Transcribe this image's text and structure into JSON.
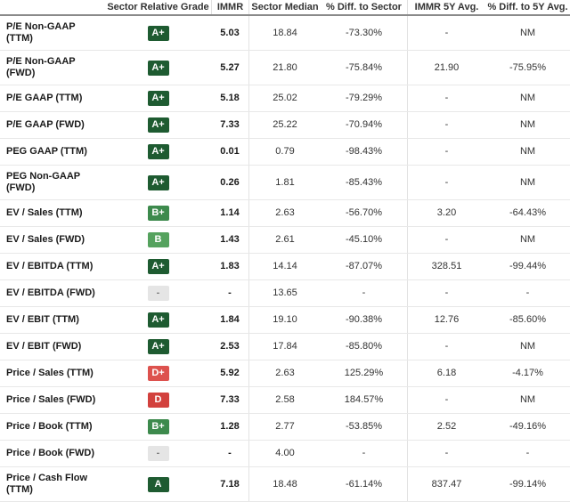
{
  "table": {
    "columns": [
      "",
      "Sector Relative Grade",
      "IMMR",
      "Sector Median",
      "% Diff. to Sector",
      "IMMR 5Y Avg.",
      "% Diff. to 5Y Avg."
    ],
    "rows": [
      {
        "label": "P/E Non-GAAP (TTM)",
        "grade": "A+",
        "immr": "5.03",
        "sector_median": "18.84",
        "diff_to_sector": "-73.30%",
        "immr_5y_avg": "-",
        "diff_to_5y_avg": "NM"
      },
      {
        "label": "P/E Non-GAAP (FWD)",
        "grade": "A+",
        "immr": "5.27",
        "sector_median": "21.80",
        "diff_to_sector": "-75.84%",
        "immr_5y_avg": "21.90",
        "diff_to_5y_avg": "-75.95%"
      },
      {
        "label": "P/E GAAP (TTM)",
        "grade": "A+",
        "immr": "5.18",
        "sector_median": "25.02",
        "diff_to_sector": "-79.29%",
        "immr_5y_avg": "-",
        "diff_to_5y_avg": "NM"
      },
      {
        "label": "P/E GAAP (FWD)",
        "grade": "A+",
        "immr": "7.33",
        "sector_median": "25.22",
        "diff_to_sector": "-70.94%",
        "immr_5y_avg": "-",
        "diff_to_5y_avg": "NM"
      },
      {
        "label": "PEG GAAP (TTM)",
        "grade": "A+",
        "immr": "0.01",
        "sector_median": "0.79",
        "diff_to_sector": "-98.43%",
        "immr_5y_avg": "-",
        "diff_to_5y_avg": "NM"
      },
      {
        "label": "PEG Non-GAAP (FWD)",
        "grade": "A+",
        "immr": "0.26",
        "sector_median": "1.81",
        "diff_to_sector": "-85.43%",
        "immr_5y_avg": "-",
        "diff_to_5y_avg": "NM"
      },
      {
        "label": "EV / Sales (TTM)",
        "grade": "B+",
        "immr": "1.14",
        "sector_median": "2.63",
        "diff_to_sector": "-56.70%",
        "immr_5y_avg": "3.20",
        "diff_to_5y_avg": "-64.43%"
      },
      {
        "label": "EV / Sales (FWD)",
        "grade": "B",
        "immr": "1.43",
        "sector_median": "2.61",
        "diff_to_sector": "-45.10%",
        "immr_5y_avg": "-",
        "diff_to_5y_avg": "NM"
      },
      {
        "label": "EV / EBITDA (TTM)",
        "grade": "A+",
        "immr": "1.83",
        "sector_median": "14.14",
        "diff_to_sector": "-87.07%",
        "immr_5y_avg": "328.51",
        "diff_to_5y_avg": "-99.44%"
      },
      {
        "label": "EV / EBITDA (FWD)",
        "grade": "-",
        "immr": "-",
        "sector_median": "13.65",
        "diff_to_sector": "-",
        "immr_5y_avg": "-",
        "diff_to_5y_avg": "-"
      },
      {
        "label": "EV / EBIT (TTM)",
        "grade": "A+",
        "immr": "1.84",
        "sector_median": "19.10",
        "diff_to_sector": "-90.38%",
        "immr_5y_avg": "12.76",
        "diff_to_5y_avg": "-85.60%"
      },
      {
        "label": "EV / EBIT (FWD)",
        "grade": "A+",
        "immr": "2.53",
        "sector_median": "17.84",
        "diff_to_sector": "-85.80%",
        "immr_5y_avg": "-",
        "diff_to_5y_avg": "NM"
      },
      {
        "label": "Price / Sales (TTM)",
        "grade": "D+",
        "immr": "5.92",
        "sector_median": "2.63",
        "diff_to_sector": "125.29%",
        "immr_5y_avg": "6.18",
        "diff_to_5y_avg": "-4.17%"
      },
      {
        "label": "Price / Sales (FWD)",
        "grade": "D",
        "immr": "7.33",
        "sector_median": "2.58",
        "diff_to_sector": "184.57%",
        "immr_5y_avg": "-",
        "diff_to_5y_avg": "NM"
      },
      {
        "label": "Price / Book (TTM)",
        "grade": "B+",
        "immr": "1.28",
        "sector_median": "2.77",
        "diff_to_sector": "-53.85%",
        "immr_5y_avg": "2.52",
        "diff_to_5y_avg": "-49.16%"
      },
      {
        "label": "Price / Book (FWD)",
        "grade": "-",
        "immr": "-",
        "sector_median": "4.00",
        "diff_to_sector": "-",
        "immr_5y_avg": "-",
        "diff_to_5y_avg": "-"
      },
      {
        "label": "Price / Cash Flow (TTM)",
        "grade": "A",
        "immr": "7.18",
        "sector_median": "18.48",
        "diff_to_sector": "-61.14%",
        "immr_5y_avg": "837.47",
        "diff_to_5y_avg": "-99.14%"
      }
    ]
  },
  "grade_colors": {
    "A+": {
      "bg": "#1e5b31",
      "fg": "#ffffff"
    },
    "A": {
      "bg": "#1e5b31",
      "fg": "#ffffff"
    },
    "B+": {
      "bg": "#3d8a4d",
      "fg": "#ffffff"
    },
    "B": {
      "bg": "#55a25e",
      "fg": "#ffffff"
    },
    "D+": {
      "bg": "#dd524e",
      "fg": "#ffffff"
    },
    "D": {
      "bg": "#d2413d",
      "fg": "#ffffff"
    },
    "-": {
      "bg": "#e5e5e5",
      "fg": "#7d7d7d"
    }
  }
}
